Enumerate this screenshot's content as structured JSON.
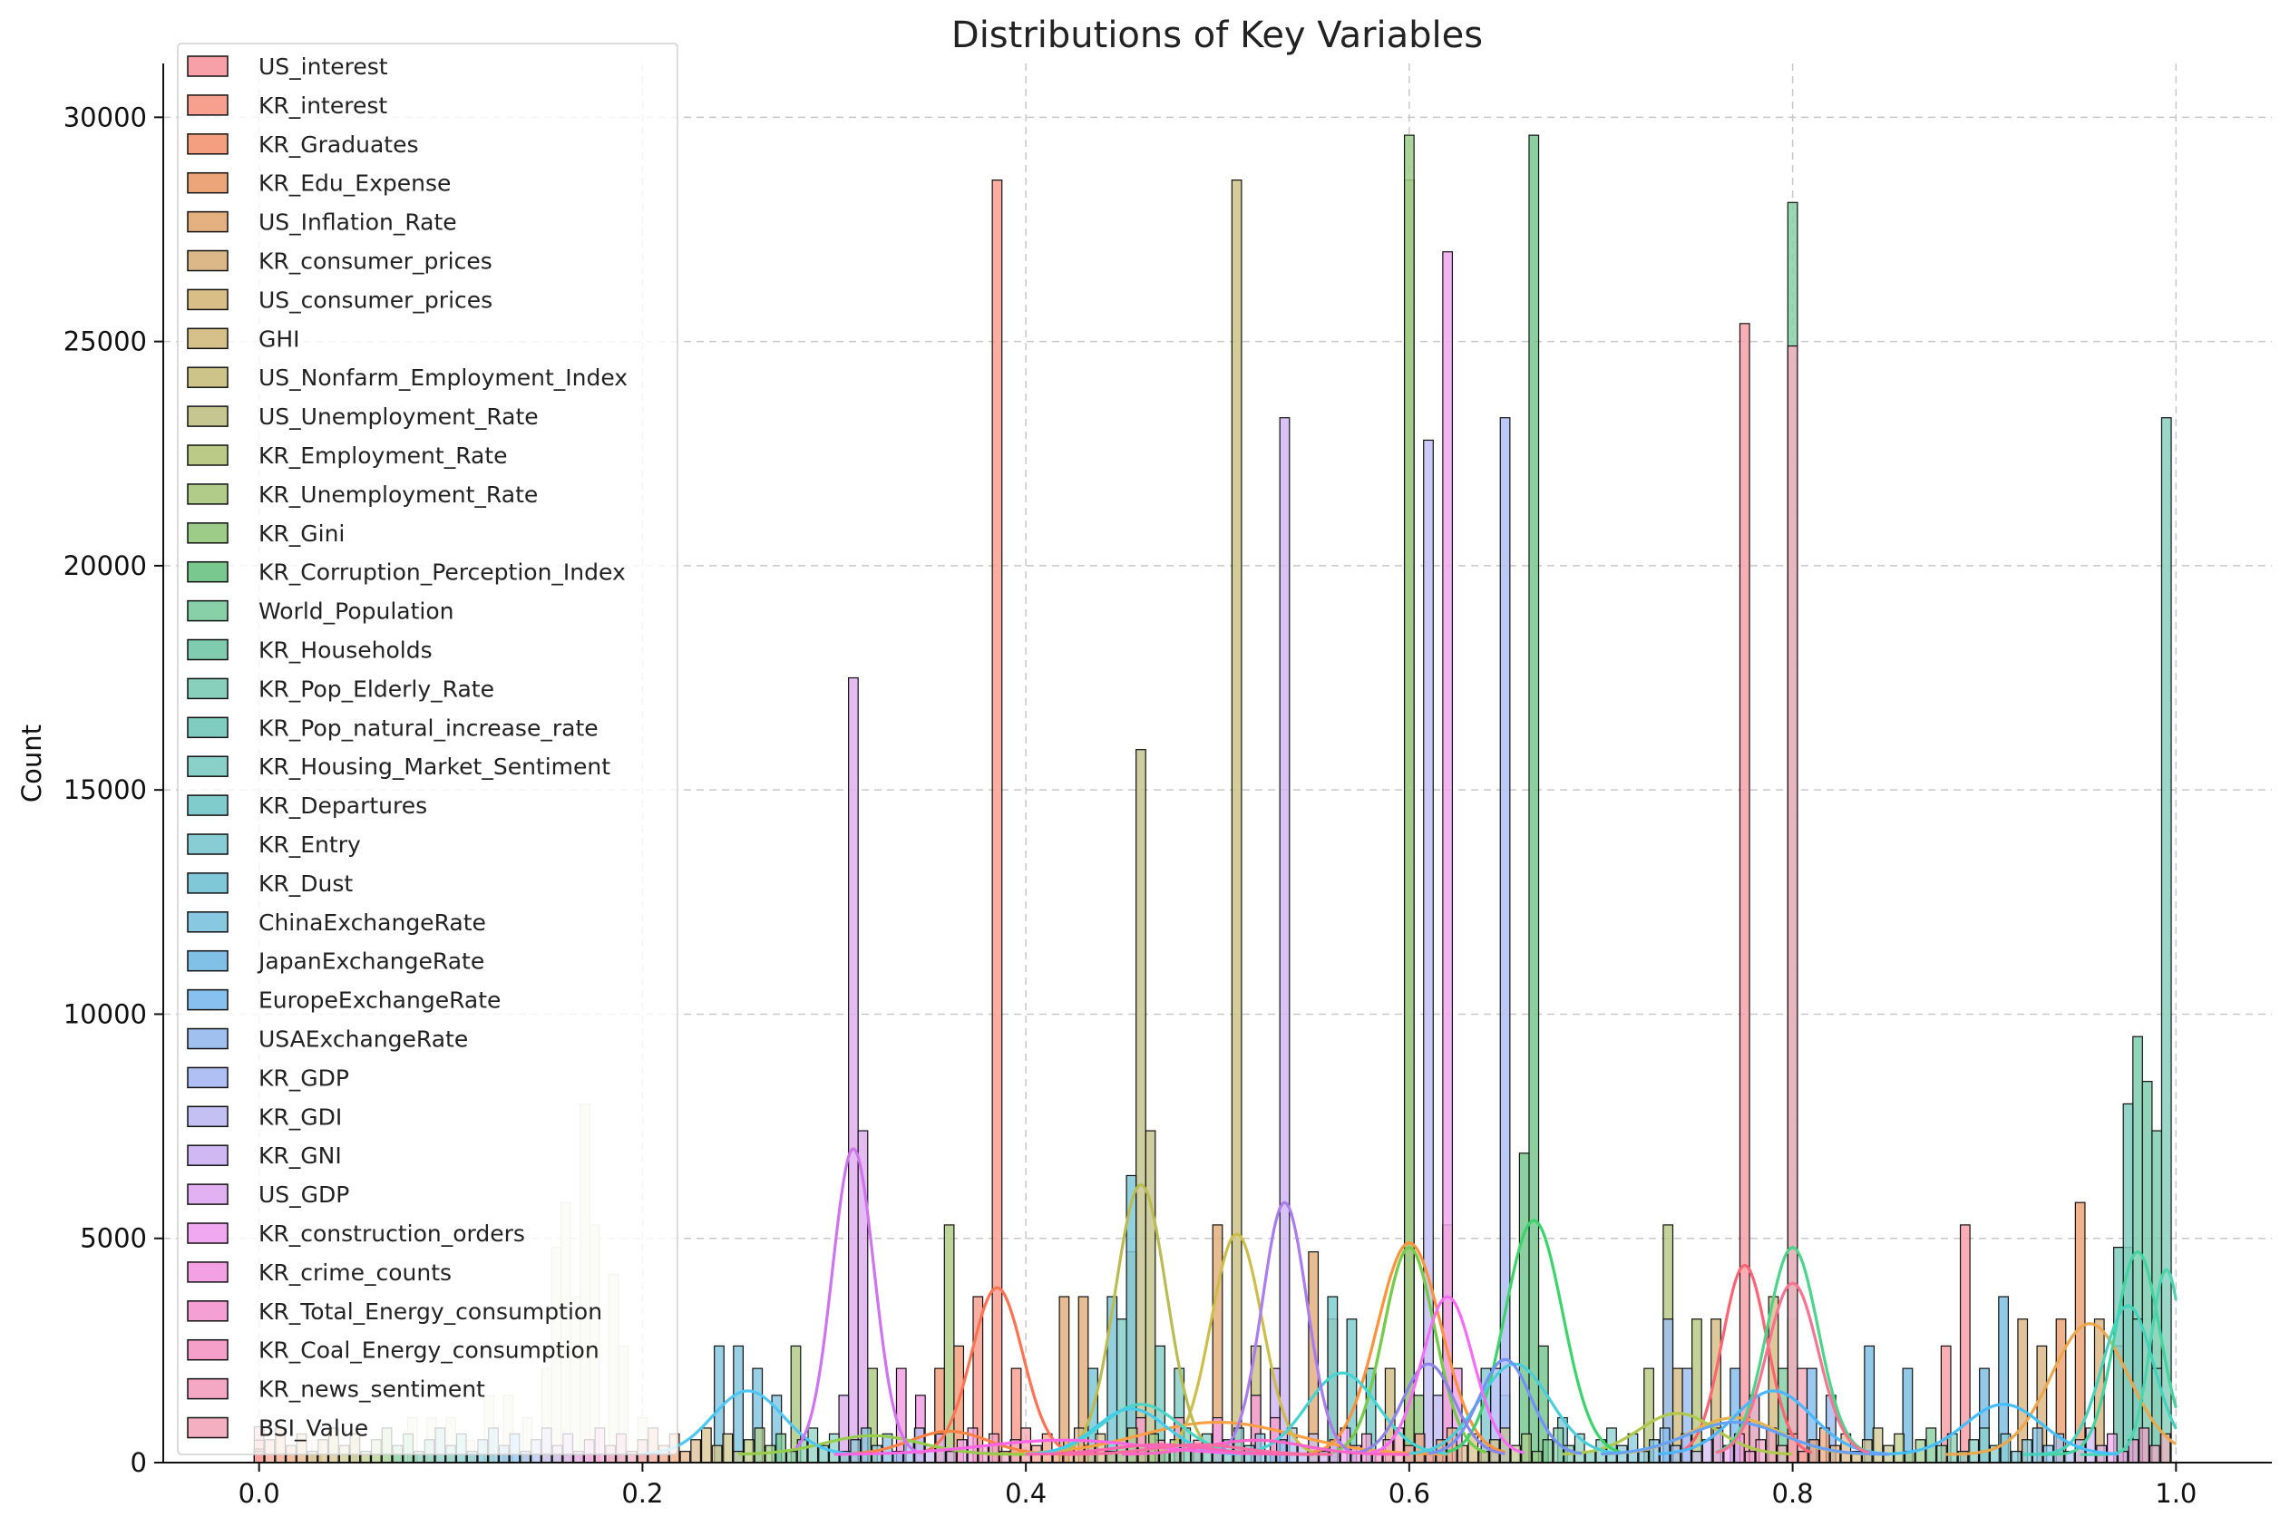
{
  "chart_data": {
    "type": "histogram",
    "title": "Distributions of Key Variables",
    "xlabel": "",
    "ylabel": "Count",
    "xlim": [
      -0.05,
      1.05
    ],
    "ylim": [
      0,
      31200
    ],
    "xticks": [
      0.0,
      0.2,
      0.4,
      0.6,
      0.8,
      1.0
    ],
    "xtick_labels": [
      "0.0",
      "0.2",
      "0.4",
      "0.6",
      "0.8",
      "1.0"
    ],
    "yticks": [
      0,
      5000,
      10000,
      15000,
      20000,
      25000,
      30000
    ],
    "ytick_labels": [
      "0",
      "5000",
      "10000",
      "15000",
      "20000",
      "25000",
      "30000"
    ],
    "grid": true,
    "legend_position": "top-left",
    "bin_width": 0.005,
    "series": [
      {
        "name": "US_interest",
        "color": "#f8a0a8",
        "bars": [
          [
            0.775,
            25400
          ],
          [
            0.89,
            5300
          ],
          [
            0.88,
            2600
          ],
          [
            0.0,
            800
          ]
        ],
        "kde": [
          [
            0.74,
            0
          ],
          [
            0.775,
            4400
          ],
          [
            0.81,
            0
          ]
        ]
      },
      {
        "name": "KR_interest",
        "color": "#f8a090",
        "bars": [
          [
            0.385,
            28600
          ],
          [
            0.375,
            3700
          ],
          [
            0.395,
            2100
          ],
          [
            0.0,
            500
          ]
        ],
        "kde": [
          [
            0.345,
            0
          ],
          [
            0.385,
            3900
          ],
          [
            0.425,
            0
          ]
        ]
      },
      {
        "name": "KR_Graduates",
        "color": "#f4a080",
        "bars": [
          [
            0.365,
            2600
          ],
          [
            0.355,
            2100
          ],
          [
            0.0,
            300
          ]
        ],
        "kde": [
          [
            0.3,
            0
          ],
          [
            0.36,
            700
          ],
          [
            0.42,
            0
          ]
        ]
      },
      {
        "name": "KR_Edu_Expense",
        "color": "#eca578",
        "bars": [
          [
            0.62,
            5300
          ],
          [
            0.6,
            4800
          ],
          [
            0.95,
            5800
          ],
          [
            0.94,
            3200
          ]
        ],
        "kde": [
          [
            0.55,
            0
          ],
          [
            0.6,
            4900
          ],
          [
            0.65,
            0
          ]
        ]
      },
      {
        "name": "US_Inflation_Rate",
        "color": "#e4b080",
        "bars": [
          [
            0.5,
            5300
          ],
          [
            0.55,
            4700
          ],
          [
            0.56,
            3200
          ],
          [
            0.42,
            3700
          ],
          [
            0.43,
            3700
          ]
        ],
        "kde": [
          [
            0.38,
            0
          ],
          [
            0.5,
            900
          ],
          [
            0.62,
            0
          ]
        ]
      },
      {
        "name": "KR_consumer_prices",
        "color": "#dcb888",
        "bars": [
          [
            0.92,
            3200
          ],
          [
            0.93,
            2600
          ],
          [
            0.96,
            3200
          ],
          [
            0.97,
            2600
          ]
        ],
        "kde": [
          [
            0.88,
            0
          ],
          [
            0.955,
            3100
          ],
          [
            1.0,
            1000
          ]
        ]
      },
      {
        "name": "US_consumer_prices",
        "color": "#d8bf88",
        "bars": [
          [
            0.74,
            2100
          ],
          [
            0.76,
            3200
          ],
          [
            0.79,
            3700
          ],
          [
            0.8,
            3200
          ]
        ],
        "kde": [
          [
            0.7,
            0
          ],
          [
            0.77,
            1000
          ],
          [
            0.84,
            0
          ]
        ]
      },
      {
        "name": "GHI",
        "color": "#d4c088",
        "bars": [
          [
            0.6,
            28600
          ],
          [
            0.59,
            2100
          ]
        ],
        "kde": [
          [
            0.56,
            0
          ],
          [
            0.6,
            4800
          ],
          [
            0.64,
            0
          ]
        ]
      },
      {
        "name": "US_Nonfarm_Employment_Index",
        "color": "#ccc488",
        "bars": [
          [
            0.51,
            28600
          ],
          [
            0.52,
            2600
          ]
        ],
        "kde": [
          [
            0.47,
            0
          ],
          [
            0.51,
            5100
          ],
          [
            0.55,
            0
          ]
        ]
      },
      {
        "name": "US_Unemployment_Rate",
        "color": "#c6c690",
        "bars": [
          [
            0.465,
            7400
          ],
          [
            0.46,
            15900
          ],
          [
            0.455,
            4700
          ]
        ],
        "kde": [
          [
            0.42,
            0
          ],
          [
            0.46,
            6200
          ],
          [
            0.5,
            0
          ]
        ]
      },
      {
        "name": "KR_Employment_Rate",
        "color": "#bcca88",
        "bars": [
          [
            0.735,
            5300
          ],
          [
            0.725,
            2100
          ],
          [
            0.75,
            3200
          ]
        ],
        "kde": [
          [
            0.68,
            0
          ],
          [
            0.74,
            1100
          ],
          [
            0.8,
            0
          ]
        ]
      },
      {
        "name": "KR_Unemployment_Rate",
        "color": "#b0cc88",
        "bars": [
          [
            0.36,
            5300
          ],
          [
            0.28,
            2600
          ],
          [
            0.32,
            2100
          ]
        ],
        "kde": [
          [
            0.25,
            0
          ],
          [
            0.32,
            600
          ],
          [
            0.4,
            0
          ]
        ]
      },
      {
        "name": "KR_Gini",
        "color": "#9ccc88",
        "bars": [
          [
            0.6,
            29600
          ],
          [
            0.605,
            1500
          ]
        ],
        "kde": [
          [
            0.56,
            0
          ],
          [
            0.6,
            4800
          ],
          [
            0.64,
            0
          ]
        ]
      },
      {
        "name": "KR_Corruption_Perception_Index",
        "color": "#78c890",
        "bars": [
          [
            0.665,
            29600
          ],
          [
            0.66,
            6900
          ],
          [
            0.67,
            2600
          ]
        ],
        "kde": [
          [
            0.62,
            0
          ],
          [
            0.665,
            5400
          ],
          [
            0.71,
            0
          ]
        ]
      },
      {
        "name": "World_Population",
        "color": "#88d0a8",
        "bars": [
          [
            0.8,
            28100
          ],
          [
            0.795,
            2100
          ]
        ],
        "kde": [
          [
            0.76,
            0
          ],
          [
            0.8,
            4800
          ],
          [
            0.84,
            0
          ]
        ]
      },
      {
        "name": "KR_Households",
        "color": "#80ccb0",
        "bars": [
          [
            0.98,
            9500
          ],
          [
            0.985,
            8500
          ],
          [
            0.99,
            7400
          ],
          [
            0.975,
            4800
          ]
        ],
        "kde": [
          [
            0.93,
            0
          ],
          [
            0.98,
            4700
          ],
          [
            1.0,
            3000
          ]
        ]
      },
      {
        "name": "KR_Pop_Elderly_Rate",
        "color": "#88d0bc",
        "bars": [
          [
            0.995,
            23300
          ],
          [
            0.99,
            2100
          ]
        ],
        "kde": [
          [
            0.95,
            0
          ],
          [
            0.995,
            4300
          ],
          [
            1.0,
            4300
          ]
        ]
      },
      {
        "name": "KR_Pop_natural_increase_rate",
        "color": "#80ccc0",
        "bars": [
          [
            0.975,
            8000
          ],
          [
            0.97,
            4800
          ],
          [
            0.98,
            3200
          ]
        ],
        "kde": [
          [
            0.92,
            0
          ],
          [
            0.975,
            3500
          ],
          [
            1.0,
            2000
          ]
        ]
      },
      {
        "name": "KR_Housing_Market_Sentiment",
        "color": "#88d0c8",
        "bars": [
          [
            0.45,
            3200
          ],
          [
            0.47,
            2600
          ],
          [
            0.48,
            2100
          ]
        ],
        "kde": [
          [
            0.4,
            0
          ],
          [
            0.46,
            1300
          ],
          [
            0.52,
            0
          ]
        ]
      },
      {
        "name": "KR_Departures",
        "color": "#80cccc",
        "bars": [
          [
            0.56,
            3700
          ],
          [
            0.57,
            3200
          ],
          [
            0.58,
            2100
          ]
        ],
        "kde": [
          [
            0.51,
            0
          ],
          [
            0.565,
            2000
          ],
          [
            0.62,
            0
          ]
        ]
      },
      {
        "name": "KR_Entry",
        "color": "#88ccd4",
        "bars": [
          [
            0.64,
            2100
          ],
          [
            0.65,
            1500
          ],
          [
            0.68,
            1000
          ]
        ],
        "kde": [
          [
            0.6,
            0
          ],
          [
            0.655,
            2200
          ],
          [
            0.71,
            0
          ]
        ]
      },
      {
        "name": "KR_Dust",
        "color": "#80c8d8",
        "bars": [
          [
            0.455,
            6400
          ],
          [
            0.445,
            3700
          ],
          [
            0.435,
            2100
          ]
        ],
        "kde": [
          [
            0.4,
            0
          ],
          [
            0.455,
            1200
          ],
          [
            0.51,
            0
          ]
        ]
      },
      {
        "name": "ChinaExchangeRate",
        "color": "#88c8e0",
        "bars": [
          [
            0.24,
            2600
          ],
          [
            0.25,
            2600
          ],
          [
            0.26,
            2100
          ],
          [
            0.27,
            1500
          ]
        ],
        "kde": [
          [
            0.2,
            0
          ],
          [
            0.255,
            1600
          ],
          [
            0.31,
            0
          ]
        ]
      },
      {
        "name": "JapanExchangeRate",
        "color": "#80c0e4",
        "bars": [
          [
            0.91,
            3700
          ],
          [
            0.9,
            2100
          ],
          [
            0.86,
            2100
          ],
          [
            0.84,
            2600
          ]
        ],
        "kde": [
          [
            0.85,
            0
          ],
          [
            0.91,
            1300
          ],
          [
            0.97,
            0
          ]
        ]
      },
      {
        "name": "EuropeExchangeRate",
        "color": "#88c0f0",
        "bars": [
          [
            0.77,
            2100
          ],
          [
            0.78,
            1500
          ],
          [
            0.81,
            2100
          ]
        ],
        "kde": [
          [
            0.73,
            0
          ],
          [
            0.79,
            1600
          ],
          [
            0.85,
            0
          ]
        ]
      },
      {
        "name": "USAExchangeRate",
        "color": "#a0c0f0",
        "bars": [
          [
            0.735,
            3200
          ],
          [
            0.745,
            2100
          ],
          [
            0.82,
            1500
          ]
        ],
        "kde": [
          [
            0.7,
            0
          ],
          [
            0.77,
            900
          ],
          [
            0.85,
            0
          ]
        ]
      },
      {
        "name": "KR_GDP",
        "color": "#b0c0f4",
        "bars": [
          [
            0.65,
            23300
          ],
          [
            0.645,
            2100
          ]
        ],
        "kde": [
          [
            0.61,
            0
          ],
          [
            0.65,
            2300
          ],
          [
            0.69,
            0
          ]
        ]
      },
      {
        "name": "KR_GDI",
        "color": "#c4c0f4",
        "bars": [
          [
            0.61,
            22800
          ],
          [
            0.615,
            1500
          ]
        ],
        "kde": [
          [
            0.57,
            0
          ],
          [
            0.61,
            2200
          ],
          [
            0.65,
            0
          ]
        ]
      },
      {
        "name": "KR_GNI",
        "color": "#d0b8f4",
        "bars": [
          [
            0.535,
            23300
          ],
          [
            0.53,
            2100
          ]
        ],
        "kde": [
          [
            0.5,
            0
          ],
          [
            0.535,
            5800
          ],
          [
            0.57,
            0
          ]
        ]
      },
      {
        "name": "US_GDP",
        "color": "#e0b0f0",
        "bars": [
          [
            0.31,
            17500
          ],
          [
            0.315,
            7400
          ],
          [
            0.305,
            1500
          ]
        ],
        "kde": [
          [
            0.28,
            0
          ],
          [
            0.31,
            7000
          ],
          [
            0.345,
            0
          ]
        ]
      },
      {
        "name": "KR_construction_orders",
        "color": "#f0a8f0",
        "bars": [
          [
            0.62,
            27000
          ],
          [
            0.625,
            2100
          ]
        ],
        "kde": [
          [
            0.58,
            0
          ],
          [
            0.62,
            3700
          ],
          [
            0.66,
            0
          ]
        ]
      },
      {
        "name": "KR_crime_counts",
        "color": "#f4a0e4",
        "bars": [
          [
            0.335,
            2100
          ],
          [
            0.345,
            1500
          ],
          [
            0.5,
            1000
          ]
        ],
        "kde": [
          [
            0.3,
            0
          ],
          [
            0.42,
            500
          ],
          [
            0.55,
            0
          ]
        ]
      },
      {
        "name": "KR_Total_Energy_consumption",
        "color": "#f4a0d4",
        "bars": [
          [
            0.52,
            1500
          ],
          [
            0.53,
            1000
          ]
        ],
        "kde": [
          [
            0.45,
            0
          ],
          [
            0.52,
            500
          ],
          [
            0.6,
            0
          ]
        ]
      },
      {
        "name": "KR_Coal_Energy_consumption",
        "color": "#f4a0c8",
        "bars": [
          [
            0.46,
            1000
          ],
          [
            0.47,
            500
          ]
        ],
        "kde": [
          [
            0.4,
            0
          ],
          [
            0.47,
            400
          ],
          [
            0.55,
            0
          ]
        ]
      },
      {
        "name": "KR_news_sentiment",
        "color": "#f4a8c4",
        "bars": [
          [
            0.48,
            1000
          ],
          [
            0.49,
            500
          ]
        ],
        "kde": [
          [
            0.42,
            0
          ],
          [
            0.49,
            400
          ],
          [
            0.56,
            0
          ]
        ]
      },
      {
        "name": "BSI_Value",
        "color": "#f4b0c0",
        "bars": [
          [
            0.8,
            24900
          ],
          [
            0.805,
            2100
          ],
          [
            0.78,
            1500
          ]
        ],
        "kde": [
          [
            0.76,
            0
          ],
          [
            0.8,
            4000
          ],
          [
            0.84,
            0
          ]
        ]
      }
    ],
    "background_bars": {
      "color": "#e8ecd8",
      "bars": [
        [
          0.17,
          8000
        ],
        [
          0.16,
          5800
        ],
        [
          0.175,
          5300
        ],
        [
          0.155,
          4800
        ],
        [
          0.185,
          4200
        ],
        [
          0.165,
          3700
        ],
        [
          0.19,
          2600
        ],
        [
          0.15,
          2100
        ],
        [
          0.13,
          1500
        ],
        [
          0.14,
          1000
        ],
        [
          0.12,
          1500
        ],
        [
          0.1,
          1000
        ],
        [
          0.08,
          1000
        ],
        [
          0.09,
          1000
        ],
        [
          0.2,
          1000
        ],
        [
          0.05,
          500
        ],
        [
          0.03,
          500
        ],
        [
          0.11,
          500
        ]
      ]
    }
  }
}
